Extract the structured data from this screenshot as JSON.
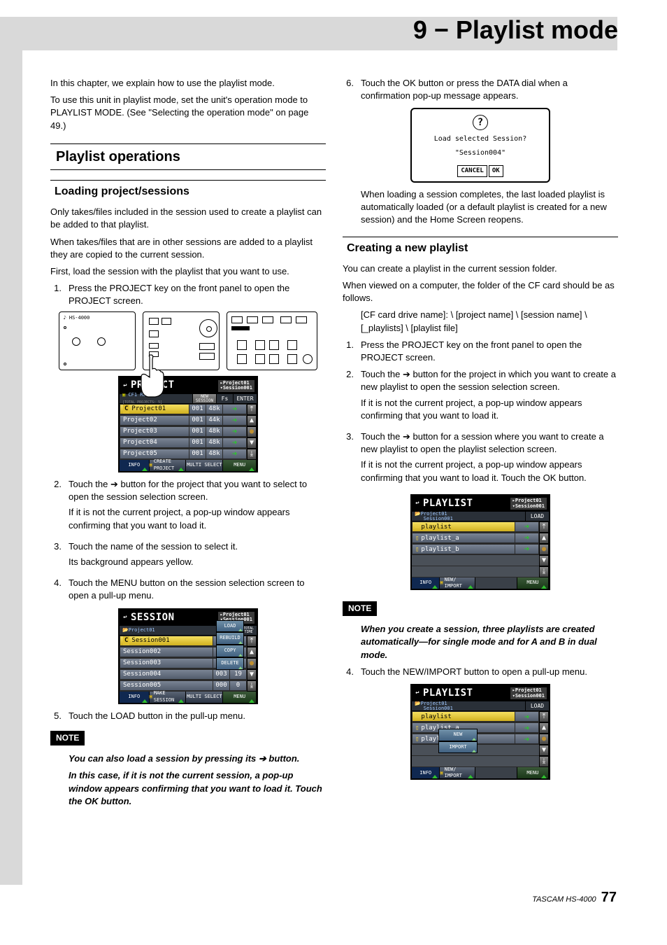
{
  "chapter_title": "9 − Playlist mode",
  "footer_model": "TASCAM  HS-4000",
  "page_number": "77",
  "intro": {
    "p1": "In this chapter, we explain how to use the playlist mode.",
    "p2": "To use this unit in playlist mode, set the unit's operation mode to PLAYLIST MODE. (See \"Selecting the operation mode\" on page 49.)"
  },
  "h1_playlist_ops": "Playlist operations",
  "h2_loading": "Loading project/sessions",
  "loading": {
    "p1": "Only takes/files included in the session used to create a playlist can be added to that playlist.",
    "p2": "When takes/files that are in other sessions are added to a playlist they are copied to the current session.",
    "p3": "First, load the session with the playlist that you want to use.",
    "s1": "Press the PROJECT key on the front panel to open the PROJECT screen.",
    "s2": "Touch the ➔ button for the project that you want to select to open the session selection screen.",
    "s2b": "If it is not the current project, a pop-up window appears confirming that you want to load it.",
    "s3": "Touch the name of the session to select it.",
    "s3b": "Its background appears yellow.",
    "s4": "Touch the MENU button on the session selection screen to open a pull-up menu.",
    "s5": "Touch the LOAD button in the pull-up menu.",
    "note1a": "You can also load a session by pressing its ➔ button.",
    "note1b": "In this case, if it is not the current session, a pop-up window appears confirming that you want to load it. Touch the OK button."
  },
  "device_label": "HS-4000",
  "project_screen": {
    "title": "PROJECT",
    "sub1": "Project01",
    "sub2": "Session001",
    "hdr_left": "CF1 ROOT",
    "hdr_left2": "[TOTAL PROJECTS:  5]",
    "new_session": "NEW SESSION",
    "fs": "Fs",
    "enter": "ENTER",
    "rows": [
      {
        "name": "Project01",
        "n": "001",
        "fs": "48k",
        "sel": true,
        "c": true
      },
      {
        "name": "Project02",
        "n": "001",
        "fs": "44k"
      },
      {
        "name": "Project03",
        "n": "001",
        "fs": "48k"
      },
      {
        "name": "Project04",
        "n": "001",
        "fs": "48k"
      },
      {
        "name": "Project05",
        "n": "001",
        "fs": "48k"
      }
    ],
    "f_info": "INFO",
    "f_create": "CREATE PROJECT",
    "f_multi": "MULTI SELECT",
    "f_menu": "MENU"
  },
  "session_screen": {
    "title": "SESSION",
    "sub1": "Project01",
    "sub2": "Session001",
    "hdr_left": "Project01",
    "col1": "NUM OF TAKE",
    "col2": "TOTAL TIME",
    "rows": [
      {
        "name": "Session001",
        "n": "009",
        "t": "2",
        "sel": true,
        "c": true
      },
      {
        "name": "Session002",
        "n": "004",
        "t": "19"
      },
      {
        "name": "Session003",
        "n": "004",
        "t": "20"
      },
      {
        "name": "Session004",
        "n": "003",
        "t": "19"
      },
      {
        "name": "Session005",
        "n": "000",
        "t": "0"
      }
    ],
    "menu": [
      "LOAD",
      "REBUILD",
      "COPY",
      "DELETE"
    ],
    "f_info": "INFO",
    "f_make": "MAKE SESSION",
    "f_multi": "MULTI SELECT",
    "f_menu": "MENU"
  },
  "right": {
    "s6": "Touch the OK button or press the DATA dial when a confirmation pop-up message appears.",
    "dlg_line1": "Load selected Session?",
    "dlg_line2": "\"Session004\"",
    "dlg_cancel": "CANCEL",
    "dlg_ok": "OK",
    "p_after": "When loading a session completes, the last loaded playlist is automatically loaded (or a default playlist is created for a new session) and the Home Screen reopens."
  },
  "h2_creating": "Creating a new playlist",
  "creating": {
    "p1": "You can create a playlist in the current session folder.",
    "p2": "When viewed on a computer, the folder of the CF card should be as follows.",
    "path": "[CF card drive name]: \\ [project name] \\ [session name] \\ [_playlists] \\ [playlist file]",
    "s1": "Press the PROJECT key on the front panel to open the PROJECT screen.",
    "s2": "Touch the ➔ button for the project in which you want to create a new playlist to open the session selection screen.",
    "s2b": "If it is not the current project, a pop-up window appears confirming that you want to load it.",
    "s3": "Touch the ➔ button for a session where you want to create a new playlist to open the playlist selection screen.",
    "s3b": "If it is not the current project, a pop-up window appears confirming that you want to load it. Touch the OK button.",
    "note": "When you create a session, three playlists are created automatically—for single mode and for A and B in dual mode.",
    "s4": "Touch the NEW/IMPORT button to open a pull-up menu."
  },
  "playlist_screen": {
    "title": "PLAYLIST",
    "sub1": "Project01",
    "sub2": "Session001",
    "hdr_left1": "Project01",
    "hdr_left2": "Session001",
    "load": "LOAD",
    "rows": [
      {
        "name": "playlist",
        "sel": true
      },
      {
        "name": "playlist_a"
      },
      {
        "name": "playlist_b"
      }
    ],
    "f_info": "INFO",
    "f_new": "NEW/ IMPORT",
    "f_menu": "MENU"
  },
  "playlist_screen2_menu": [
    "NEW",
    "IMPORT"
  ],
  "note_label": "NOTE"
}
